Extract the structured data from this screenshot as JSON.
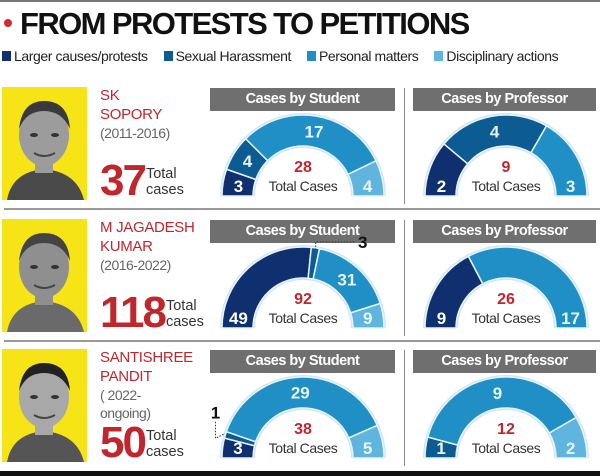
{
  "title": "FROM PROTESTS TO PETITIONS",
  "legend": [
    {
      "label": "Larger causes/protests",
      "color": "#0f2f6e"
    },
    {
      "label": "Sexual Harassment",
      "color": "#0c5b92"
    },
    {
      "label": "Personal matters",
      "color": "#1f8fc6"
    },
    {
      "label": "Disciplinary actions",
      "color": "#5fb5dd"
    }
  ],
  "rows": [
    {
      "name_line1": "SK",
      "name_line2": "SOPORY",
      "years_line1": "(2011-2016)",
      "years_line2": "",
      "total": "37",
      "total_label1": "Total",
      "total_label2": "cases",
      "student_chart": 0,
      "professor_chart": 1
    },
    {
      "name_line1": "M JAGADESH",
      "name_line2": "KUMAR",
      "years_line1": "(2016-2022)",
      "years_line2": "",
      "total": "118",
      "total_label1": "Total",
      "total_label2": "cases",
      "student_chart": 2,
      "professor_chart": 3
    },
    {
      "name_line1": "SANTISHREE",
      "name_line2": "PANDIT",
      "years_line1": "( 2022-",
      "years_line2": "ongoing)",
      "total": "50",
      "total_label1": "Total",
      "total_label2": "cases",
      "student_chart": 4,
      "professor_chart": 5
    }
  ],
  "chart_data": [
    {
      "type": "pie",
      "style": "semi-donut",
      "title": "Cases by Student",
      "person": "SK SOPORY",
      "center_value": "28",
      "center_label": "Total Cases",
      "categories": [
        "Larger causes/protests",
        "Sexual Harassment",
        "Personal matters",
        "Disciplinary actions"
      ],
      "values": [
        3,
        4,
        17,
        4
      ]
    },
    {
      "type": "pie",
      "style": "semi-donut",
      "title": "Cases by Professor",
      "person": "SK SOPORY",
      "center_value": "9",
      "center_label": "Total Cases",
      "categories": [
        "Larger causes/protests",
        "Sexual Harassment",
        "Personal matters"
      ],
      "values": [
        2,
        4,
        3
      ]
    },
    {
      "type": "pie",
      "style": "semi-donut",
      "title": "Cases by Student",
      "person": "M JAGADESH KUMAR",
      "center_value": "92",
      "center_label": "Total Cases",
      "categories": [
        "Larger causes/protests",
        "Sexual Harassment",
        "Personal matters",
        "Disciplinary actions"
      ],
      "values": [
        49,
        3,
        31,
        9
      ]
    },
    {
      "type": "pie",
      "style": "semi-donut",
      "title": "Cases by Professor",
      "person": "M JAGADESH KUMAR",
      "center_value": "26",
      "center_label": "Total Cases",
      "categories": [
        "Larger causes/protests",
        "Personal matters"
      ],
      "values": [
        9,
        17
      ]
    },
    {
      "type": "pie",
      "style": "semi-donut",
      "title": "Cases by Student",
      "person": "SANTISHREE PANDIT",
      "center_value": "38",
      "center_label": "Total Cases",
      "categories": [
        "Larger causes/protests",
        "Sexual Harassment",
        "Personal matters",
        "Disciplinary actions"
      ],
      "values": [
        3,
        1,
        29,
        5
      ]
    },
    {
      "type": "pie",
      "style": "semi-donut",
      "title": "Cases by Professor",
      "person": "SANTISHREE PANDIT",
      "center_value": "12",
      "center_label": "Total Cases",
      "categories": [
        "Sexual Harassment",
        "Personal matters",
        "Disciplinary actions"
      ],
      "values": [
        1,
        9,
        2
      ]
    }
  ]
}
